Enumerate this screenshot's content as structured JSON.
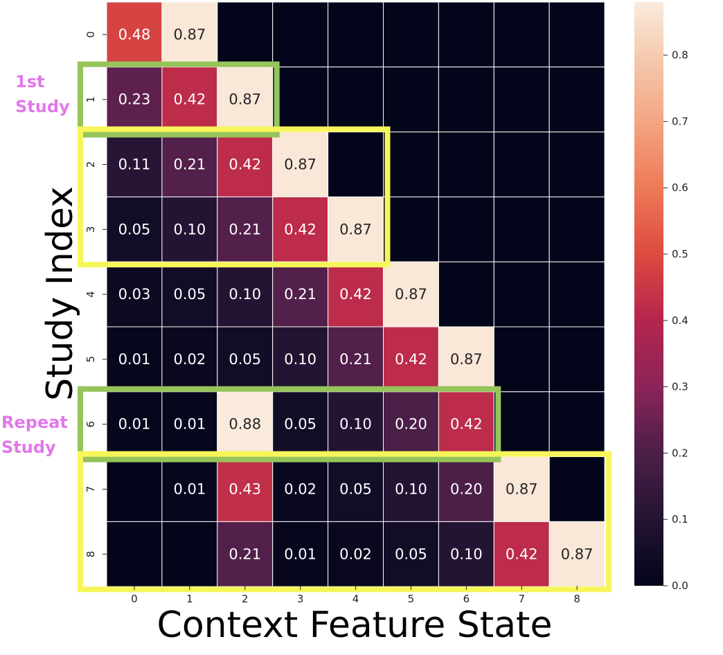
{
  "chart_data": {
    "type": "heatmap",
    "xlabel": "Context Feature State",
    "ylabel": "Study Index",
    "x_categories": [
      "0",
      "1",
      "2",
      "3",
      "4",
      "5",
      "6",
      "7",
      "8"
    ],
    "y_categories": [
      "0",
      "1",
      "2",
      "3",
      "4",
      "5",
      "6",
      "7",
      "8"
    ],
    "values": [
      [
        0.48,
        0.87,
        0.0,
        0.0,
        0.0,
        0.0,
        0.0,
        0.0,
        0.0
      ],
      [
        0.23,
        0.42,
        0.87,
        0.0,
        0.0,
        0.0,
        0.0,
        0.0,
        0.0
      ],
      [
        0.11,
        0.21,
        0.42,
        0.87,
        0.0,
        0.0,
        0.0,
        0.0,
        0.0
      ],
      [
        0.05,
        0.1,
        0.21,
        0.42,
        0.87,
        0.0,
        0.0,
        0.0,
        0.0
      ],
      [
        0.03,
        0.05,
        0.1,
        0.21,
        0.42,
        0.87,
        0.0,
        0.0,
        0.0
      ],
      [
        0.01,
        0.02,
        0.05,
        0.1,
        0.21,
        0.42,
        0.87,
        0.0,
        0.0
      ],
      [
        0.01,
        0.01,
        0.88,
        0.05,
        0.1,
        0.2,
        0.42,
        0.0,
        0.0
      ],
      [
        0.0,
        0.01,
        0.43,
        0.02,
        0.05,
        0.1,
        0.2,
        0.87,
        0.0
      ],
      [
        0.0,
        0.0,
        0.21,
        0.01,
        0.02,
        0.05,
        0.1,
        0.42,
        0.87
      ]
    ],
    "cell_labels": [
      [
        "0.48",
        "0.87",
        "",
        "",
        "",
        "",
        "",
        "",
        ""
      ],
      [
        "0.23",
        "0.42",
        "0.87",
        "",
        "",
        "",
        "",
        "",
        ""
      ],
      [
        "0.11",
        "0.21",
        "0.42",
        "0.87",
        "",
        "",
        "",
        "",
        ""
      ],
      [
        "0.05",
        "0.10",
        "0.21",
        "0.42",
        "0.87",
        "",
        "",
        "",
        ""
      ],
      [
        "0.03",
        "0.05",
        "0.10",
        "0.21",
        "0.42",
        "0.87",
        "",
        "",
        ""
      ],
      [
        "0.01",
        "0.02",
        "0.05",
        "0.10",
        "0.21",
        "0.42",
        "0.87",
        "",
        ""
      ],
      [
        "0.01",
        "0.01",
        "0.88",
        "0.05",
        "0.10",
        "0.20",
        "0.42",
        "",
        ""
      ],
      [
        "",
        "0.01",
        "0.43",
        "0.02",
        "0.05",
        "0.10",
        "0.20",
        "0.87",
        ""
      ],
      [
        "",
        "",
        "0.21",
        "0.01",
        "0.02",
        "0.05",
        "0.10",
        "0.42",
        "0.87"
      ]
    ],
    "colorbar": {
      "range": [
        0,
        0.88
      ],
      "ticks": [
        0.0,
        0.1,
        0.2,
        0.3,
        0.4,
        0.5,
        0.6,
        0.7,
        0.8
      ],
      "tick_labels": [
        "0.0",
        "0.1",
        "0.2",
        "0.3",
        "0.4",
        "0.5",
        "0.6",
        "0.7",
        "0.8"
      ],
      "colormap": "rocket"
    },
    "annotations": [
      {
        "label": "1st\nStudy",
        "color": "#e277ea",
        "box_color": "#96c45a",
        "rows": [
          1,
          1
        ],
        "cols": [
          0,
          2
        ]
      },
      {
        "label": "",
        "color": "",
        "box_color": "#f6f65a",
        "rows": [
          2,
          3
        ],
        "cols": [
          0,
          4
        ]
      },
      {
        "label": "Repeat\nStudy",
        "color": "#e277ea",
        "box_color": "#96c45a",
        "rows": [
          6,
          6
        ],
        "cols": [
          0,
          6
        ]
      },
      {
        "label": "",
        "color": "",
        "box_color": "#f6f65a",
        "rows": [
          7,
          8
        ],
        "cols": [
          0,
          8
        ]
      }
    ]
  }
}
